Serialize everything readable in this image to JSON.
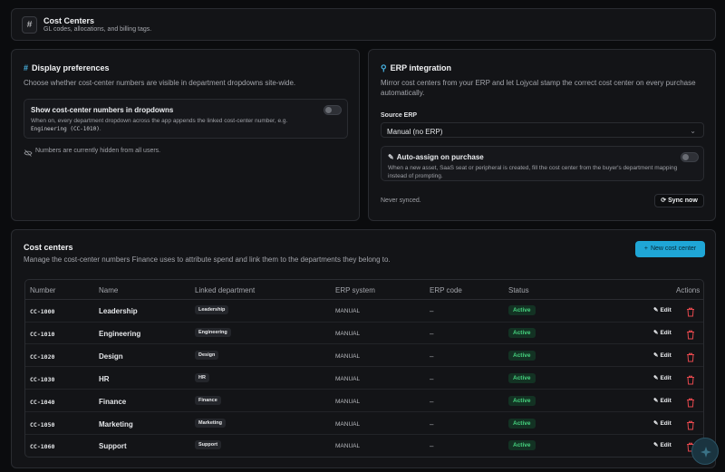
{
  "header": {
    "icon": "hash-icon",
    "title": "Cost Centers",
    "subtitle": "GL codes, allocations, and billing tags."
  },
  "display": {
    "title": "Display preferences",
    "description": "Choose whether cost-center numbers are visible in department dropdowns site-wide.",
    "option_title": "Show cost-center numbers in dropdowns",
    "option_desc": "When on, every department dropdown across the app appends the linked cost-center number, e.g.",
    "option_example": "Engineering (CC-1010)",
    "option_example_suffix": ".",
    "toggle_on": false,
    "hidden_note": "Numbers are currently hidden from all users."
  },
  "erp": {
    "title": "ERP integration",
    "description": "Mirror cost centers from your ERP and let Lojycal stamp the correct cost center on every purchase automatically.",
    "source_label": "Source ERP",
    "source_value": "Manual (no ERP)",
    "auto_title": "Auto-assign on purchase",
    "auto_desc": "When a new asset, SaaS seat or peripheral is created, fill the cost center from the buyer's department mapping instead of prompting.",
    "auto_toggle_on": false,
    "sync_status": "Never synced.",
    "sync_button": "Sync now"
  },
  "cost_centers": {
    "title": "Cost centers",
    "description": "Manage the cost-center numbers Finance uses to attribute spend and link them to the departments they belong to.",
    "new_button": "New cost center",
    "columns": [
      "Number",
      "Name",
      "Linked department",
      "ERP system",
      "ERP code",
      "Status",
      "Actions"
    ],
    "edit_label": "Edit",
    "rows": [
      {
        "number": "CC-1000",
        "name": "Leadership",
        "department": "Leadership",
        "erp": "MANUAL",
        "code": "–",
        "status": "Active"
      },
      {
        "number": "CC-1010",
        "name": "Engineering",
        "department": "Engineering",
        "erp": "MANUAL",
        "code": "–",
        "status": "Active"
      },
      {
        "number": "CC-1020",
        "name": "Design",
        "department": "Design",
        "erp": "MANUAL",
        "code": "–",
        "status": "Active"
      },
      {
        "number": "CC-1030",
        "name": "HR",
        "department": "HR",
        "erp": "MANUAL",
        "code": "–",
        "status": "Active"
      },
      {
        "number": "CC-1040",
        "name": "Finance",
        "department": "Finance",
        "erp": "MANUAL",
        "code": "–",
        "status": "Active"
      },
      {
        "number": "CC-1050",
        "name": "Marketing",
        "department": "Marketing",
        "erp": "MANUAL",
        "code": "–",
        "status": "Active"
      },
      {
        "number": "CC-1060",
        "name": "Support",
        "department": "Support",
        "erp": "MANUAL",
        "code": "–",
        "status": "Active"
      }
    ]
  },
  "colors": {
    "accent": "#1fa6d6",
    "active_text": "#46d37f",
    "active_bg": "#133223",
    "danger": "#e5484d"
  }
}
